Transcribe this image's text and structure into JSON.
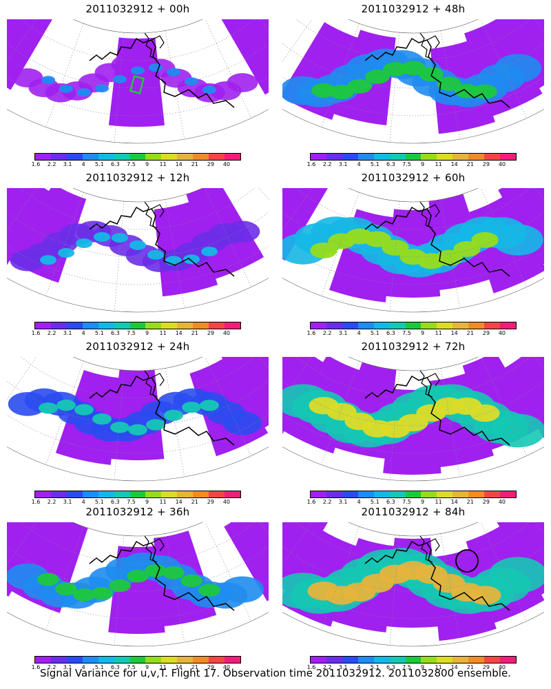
{
  "panels": [
    {
      "title": "2011032912 + 00h",
      "intensity": 0.15,
      "signal_marker": "green-box"
    },
    {
      "title": "2011032912 + 48h",
      "intensity": 0.55,
      "signal_marker": "none"
    },
    {
      "title": "2011032912 + 12h",
      "intensity": 0.25,
      "signal_marker": "none"
    },
    {
      "title": "2011032912 + 60h",
      "intensity": 0.65,
      "signal_marker": "none"
    },
    {
      "title": "2011032912 + 24h",
      "intensity": 0.35,
      "signal_marker": "none"
    },
    {
      "title": "2011032912 + 72h",
      "intensity": 0.75,
      "signal_marker": "none"
    },
    {
      "title": "2011032912 + 36h",
      "intensity": 0.45,
      "signal_marker": "none"
    },
    {
      "title": "2011032912 + 84h",
      "intensity": 0.85,
      "signal_marker": "black-circle"
    }
  ],
  "colorbar": {
    "labels": [
      "1.6",
      "2.2",
      "3.1",
      "4",
      "5.1",
      "6.3",
      "7.5",
      "9",
      "11",
      "14",
      "21",
      "29",
      "40"
    ],
    "colors": [
      "#a020f0",
      "#6a2ee8",
      "#2a4bf0",
      "#1e8cf0",
      "#14b8e6",
      "#14c8b4",
      "#1ec83c",
      "#96dc1e",
      "#dcdc28",
      "#e6b43c",
      "#f08c28",
      "#f04646",
      "#f01e78"
    ]
  },
  "caption": "Signal Variance for u,v,T. Flight 17. Observation time 2011032912. 2011032800 ensemble."
}
